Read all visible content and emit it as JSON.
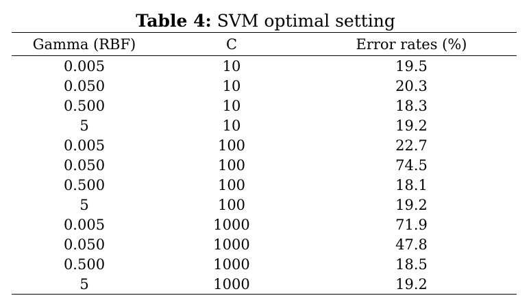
{
  "table": {
    "caption_label": "Table 4:",
    "caption_text": "SVM optimal setting",
    "headers": [
      "Gamma (RBF)",
      "C",
      "Error rates (%)"
    ],
    "rows": [
      [
        "0.005",
        "10",
        "19.5"
      ],
      [
        "0.050",
        "10",
        "20.3"
      ],
      [
        "0.500",
        "10",
        "18.3"
      ],
      [
        "5",
        "10",
        "19.2"
      ],
      [
        "0.005",
        "100",
        "22.7"
      ],
      [
        "0.050",
        "100",
        "74.5"
      ],
      [
        "0.500",
        "100",
        "18.1"
      ],
      [
        "5",
        "100",
        "19.2"
      ],
      [
        "0.005",
        "1000",
        "71.9"
      ],
      [
        "0.050",
        "1000",
        "47.8"
      ],
      [
        "0.500",
        "1000",
        "18.5"
      ],
      [
        "5",
        "1000",
        "19.2"
      ]
    ]
  }
}
